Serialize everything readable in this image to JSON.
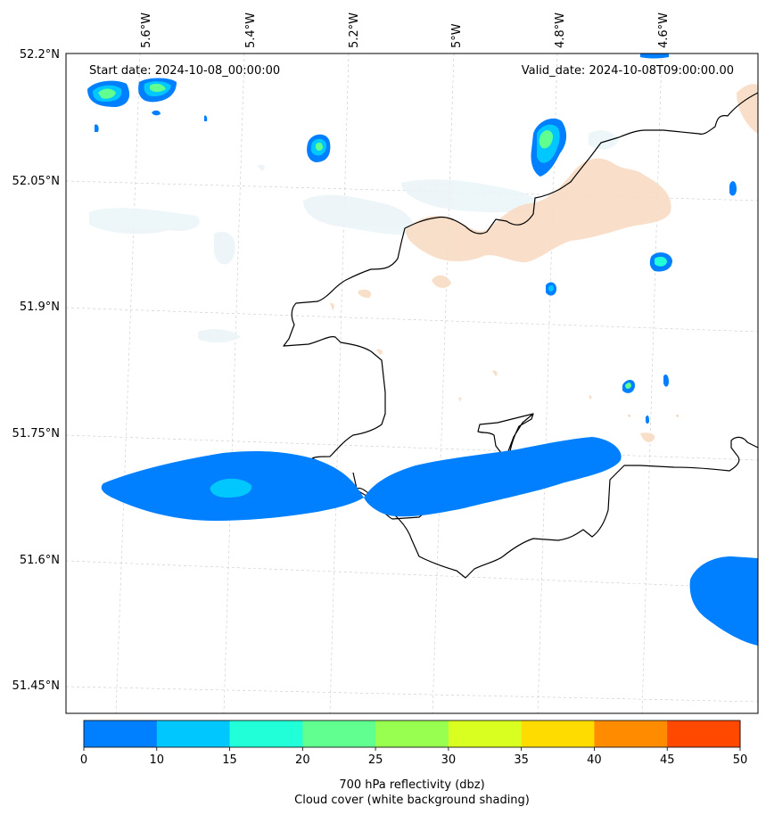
{
  "header": {
    "start_date": "Start date: 2024-10-08_00:00:00",
    "valid_date": "Valid_date: 2024-10-08T09:00:00.00"
  },
  "axes": {
    "lon_labels": [
      "5.6°W",
      "5.4°W",
      "5.2°W",
      "5°W",
      "4.8°W",
      "4.6°W"
    ],
    "lat_labels": [
      "52.2°N",
      "52.05°N",
      "51.9°N",
      "51.75°N",
      "51.6°N",
      "51.45°N"
    ],
    "grid": "dashed"
  },
  "colorbar": {
    "ticks": [
      "0",
      "10",
      "15",
      "20",
      "25",
      "30",
      "35",
      "40",
      "45",
      "50"
    ],
    "colors": [
      "#0080ff",
      "#00c8ff",
      "#20ffd8",
      "#60ff90",
      "#98ff50",
      "#d8ff20",
      "#ffdc00",
      "#ff8c00",
      "#ff4800"
    ],
    "title_line1": "700 hPa reflectivity (dbz)",
    "title_line2": "Cloud cover (white background shading)"
  },
  "layers": {
    "coastline_color": "#000000",
    "light_cloud_color": "#eaf4f8",
    "warm_shading_color": "#f8dcc4"
  }
}
